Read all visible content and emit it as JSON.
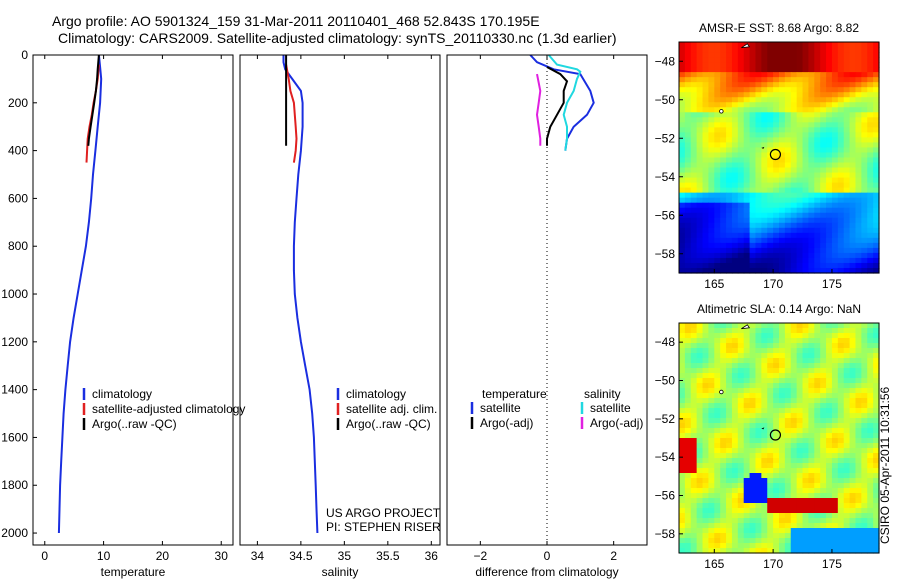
{
  "header": {
    "title_line1": "Argo profile: AO 5901324_159 31-Mar-2011 20110401_468 52.843S 170.195E",
    "title_line2": "Climatology: CARS2009. Satellite-adjusted climatology: synTS_20110330.nc (1.3d earlier)"
  },
  "side_stamp": "CSIRO 05-Apr-2011 10:31:56",
  "colors": {
    "climatology": "#e02020",
    "satellite": "#1a2ee0",
    "argo": "#000000",
    "sat_salinity": "#20d8e0",
    "argo_salinity": "#e020e0"
  },
  "chart_data": [
    {
      "type": "line",
      "id": "temperature",
      "xlabel": "temperature",
      "ylabel": "",
      "xlim": [
        -2,
        32
      ],
      "ylim": [
        2050,
        0
      ],
      "xticks": [
        0,
        10,
        20,
        30
      ],
      "yticks": [
        0,
        200,
        400,
        600,
        800,
        1000,
        1200,
        1400,
        1600,
        1800,
        2000
      ],
      "legend": {
        "placement": "lower-right",
        "entries": [
          "climatology",
          "satellite-adjusted climatology",
          "Argo(..raw -QC)"
        ]
      },
      "series": [
        {
          "name": "satellite-adjusted climatology",
          "color": "satellite",
          "points": [
            [
              9.2,
              0
            ],
            [
              9.4,
              50
            ],
            [
              9.6,
              100
            ],
            [
              9.4,
              200
            ],
            [
              9.0,
              300
            ],
            [
              8.6,
              400
            ],
            [
              8.2,
              500
            ],
            [
              7.9,
              600
            ],
            [
              7.5,
              700
            ],
            [
              7.0,
              800
            ],
            [
              6.3,
              900
            ],
            [
              5.6,
              1000
            ],
            [
              4.9,
              1100
            ],
            [
              4.3,
              1200
            ],
            [
              3.9,
              1300
            ],
            [
              3.5,
              1400
            ],
            [
              3.2,
              1500
            ],
            [
              3.0,
              1600
            ],
            [
              2.8,
              1700
            ],
            [
              2.6,
              1800
            ],
            [
              2.5,
              1900
            ],
            [
              2.4,
              2000
            ]
          ]
        },
        {
          "name": "climatology",
          "color": "climatology",
          "points": [
            [
              9.2,
              40
            ],
            [
              9.0,
              100
            ],
            [
              8.7,
              150
            ],
            [
              8.3,
              200
            ],
            [
              8.0,
              250
            ],
            [
              7.6,
              300
            ],
            [
              7.3,
              350
            ],
            [
              7.2,
              400
            ],
            [
              7.1,
              450
            ]
          ]
        },
        {
          "name": "Argo(..raw -QC)",
          "color": "argo",
          "points": [
            [
              9.2,
              0
            ],
            [
              9.0,
              60
            ],
            [
              8.9,
              100
            ],
            [
              8.7,
              150
            ],
            [
              8.4,
              200
            ],
            [
              8.1,
              250
            ],
            [
              7.8,
              300
            ],
            [
              7.5,
              350
            ],
            [
              7.4,
              380
            ]
          ]
        }
      ]
    },
    {
      "type": "line",
      "id": "salinity",
      "xlabel": "salinity",
      "ylabel": "",
      "xlim": [
        33.8,
        36.1
      ],
      "ylim": [
        2050,
        0
      ],
      "xticks": [
        34,
        34.5,
        35,
        35.5,
        36
      ],
      "tick_labels": [
        "34",
        "34.5",
        "35",
        "35.5",
        "36"
      ],
      "legend": {
        "placement": "lower-right",
        "entries": [
          "climatology",
          "satellite adj. clim.",
          "Argo(..raw -QC)"
        ]
      },
      "annotation": [
        "US ARGO PROJECT",
        "PI: STEPHEN RISER"
      ],
      "series": [
        {
          "name": "satellite adj. clim.",
          "color": "satellite",
          "points": [
            [
              34.3,
              0
            ],
            [
              34.3,
              30
            ],
            [
              34.32,
              60
            ],
            [
              34.4,
              100
            ],
            [
              34.5,
              150
            ],
            [
              34.52,
              200
            ],
            [
              34.52,
              300
            ],
            [
              34.5,
              400
            ],
            [
              34.47,
              500
            ],
            [
              34.45,
              600
            ],
            [
              34.43,
              700
            ],
            [
              34.42,
              800
            ],
            [
              34.42,
              900
            ],
            [
              34.43,
              1000
            ],
            [
              34.46,
              1100
            ],
            [
              34.5,
              1200
            ],
            [
              34.55,
              1300
            ],
            [
              34.6,
              1400
            ],
            [
              34.63,
              1500
            ],
            [
              34.65,
              1600
            ],
            [
              34.66,
              1700
            ],
            [
              34.67,
              1800
            ],
            [
              34.68,
              1900
            ],
            [
              34.69,
              2000
            ]
          ]
        },
        {
          "name": "climatology",
          "color": "climatology",
          "points": [
            [
              34.33,
              40
            ],
            [
              34.36,
              100
            ],
            [
              34.38,
              150
            ],
            [
              34.42,
              200
            ],
            [
              34.43,
              250
            ],
            [
              34.44,
              300
            ],
            [
              34.45,
              350
            ],
            [
              34.44,
              400
            ],
            [
              34.42,
              450
            ]
          ]
        },
        {
          "name": "Argo(..raw -QC)",
          "color": "argo",
          "points": [
            [
              34.33,
              0
            ],
            [
              34.33,
              100
            ],
            [
              34.33,
              200
            ],
            [
              34.33,
              300
            ],
            [
              34.33,
              380
            ]
          ]
        }
      ]
    },
    {
      "type": "line",
      "id": "difference",
      "xlabel": "difference from climatology",
      "ylabel": "",
      "xlim": [
        -3,
        3
      ],
      "ylim": [
        2050,
        0
      ],
      "xticks": [
        -2,
        0,
        2
      ],
      "zero_line": true,
      "legend": {
        "placement": "lower-center",
        "headers": [
          "temperature",
          "salinity"
        ],
        "entries": [
          "satellite",
          "Argo(-adj)",
          "satellite",
          "Argo(-adj)"
        ]
      },
      "series": [
        {
          "name": "satellite (temperature)",
          "color": "satellite",
          "points": [
            [
              -0.5,
              0
            ],
            [
              -0.3,
              30
            ],
            [
              0.2,
              60
            ],
            [
              1.0,
              80
            ],
            [
              1.3,
              150
            ],
            [
              1.4,
              200
            ],
            [
              1.2,
              250
            ],
            [
              0.8,
              300
            ],
            [
              0.6,
              350
            ],
            [
              0.55,
              400
            ]
          ]
        },
        {
          "name": "Argo(-adj) (temperature)",
          "color": "argo",
          "points": [
            [
              0.0,
              50
            ],
            [
              0.4,
              80
            ],
            [
              0.6,
              110
            ],
            [
              0.5,
              150
            ],
            [
              0.5,
              200
            ],
            [
              0.3,
              250
            ],
            [
              0.1,
              300
            ],
            [
              0.0,
              350
            ],
            [
              0.0,
              380
            ]
          ]
        },
        {
          "name": "satellite (salinity)",
          "color": "sat_salinity",
          "points": [
            [
              0.05,
              0
            ],
            [
              0.3,
              40
            ],
            [
              0.9,
              60
            ],
            [
              1.0,
              70
            ],
            [
              0.9,
              100
            ],
            [
              0.8,
              150
            ],
            [
              0.6,
              200
            ],
            [
              0.5,
              250
            ],
            [
              0.6,
              300
            ],
            [
              0.6,
              350
            ],
            [
              0.55,
              400
            ]
          ]
        },
        {
          "name": "Argo(-adj) (salinity)",
          "color": "argo_salinity",
          "points": [
            [
              -0.3,
              80
            ],
            [
              -0.2,
              150
            ],
            [
              -0.25,
              200
            ],
            [
              -0.3,
              250
            ],
            [
              -0.25,
              300
            ],
            [
              -0.2,
              350
            ],
            [
              -0.2,
              380
            ]
          ]
        }
      ]
    },
    {
      "type": "heatmap",
      "id": "sst",
      "title": "AMSR-E SST: 8.68 Argo: 8.82",
      "xlim": [
        162,
        179
      ],
      "ylim": [
        -59,
        -47
      ],
      "xticks": [
        165,
        170,
        175
      ],
      "yticks": [
        -48,
        -50,
        -52,
        -54,
        -56,
        -58
      ],
      "marker": {
        "lon": 170.195,
        "lat": -52.843
      }
    },
    {
      "type": "heatmap",
      "id": "sla",
      "title": "Altimetric SLA: 0.14 Argo: NaN",
      "xlim": [
        162,
        179
      ],
      "ylim": [
        -59,
        -47
      ],
      "xticks": [
        165,
        170,
        175
      ],
      "yticks": [
        -48,
        -50,
        -52,
        -54,
        -56,
        -58
      ],
      "marker": {
        "lon": 170.195,
        "lat": -52.843
      }
    }
  ]
}
